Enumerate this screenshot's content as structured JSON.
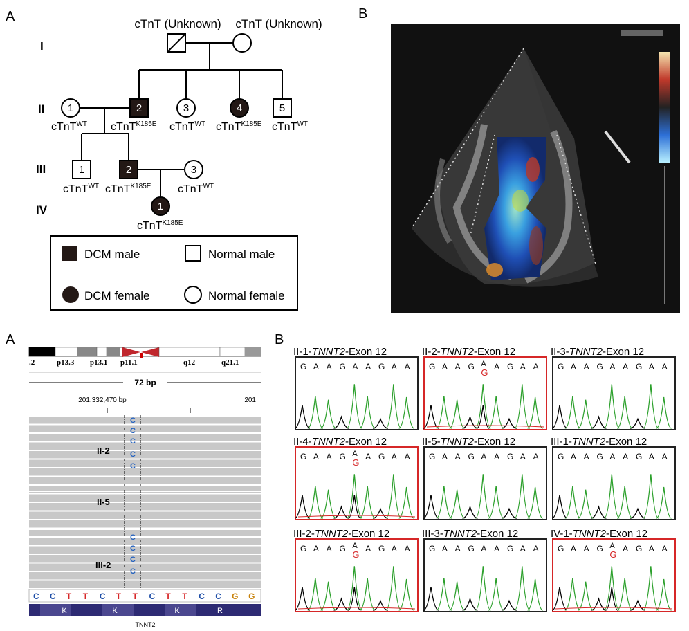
{
  "figure_top": {
    "panel_a_letter": "A",
    "panel_b_letter": "B",
    "generations": [
      "I",
      "II",
      "III",
      "IV"
    ],
    "gen1_labels": [
      "cTnT (Unknown)",
      "cTnT (Unknown)"
    ],
    "gen2": [
      {
        "num": "1",
        "label": "cTnT",
        "sup": "WT"
      },
      {
        "num": "2",
        "label": "cTnT",
        "sup": "K185E"
      },
      {
        "num": "3",
        "label": "cTnT",
        "sup": "WT"
      },
      {
        "num": "4",
        "label": "cTnT",
        "sup": "K185E"
      },
      {
        "num": "5",
        "label": "cTnT",
        "sup": "WT"
      }
    ],
    "gen3": [
      {
        "num": "1",
        "label": "cTnT",
        "sup": "WT"
      },
      {
        "num": "2",
        "label": "cTnT",
        "sup": "K185E"
      },
      {
        "num": "3",
        "label": "cTnT",
        "sup": "WT"
      }
    ],
    "gen4": [
      {
        "num": "1",
        "label": "cTnT",
        "sup": "K185E"
      }
    ],
    "legend": [
      "DCM male",
      "Normal male",
      "DCM female",
      "Normal female"
    ]
  },
  "igv": {
    "panel_letter": "A",
    "bands": [
      ".2",
      "p13.3",
      "p13.1",
      "p11.1",
      "q12",
      "q21.1"
    ],
    "span": "72 bp",
    "coord": "201,332,470 bp",
    "coord_right": "201",
    "groups": [
      "II-2",
      "II-5",
      "III-2"
    ],
    "variant_base": "C",
    "sequence": [
      "C",
      "C",
      "T",
      "T",
      "C",
      "T",
      "T",
      "C",
      "T",
      "T",
      "C",
      "C",
      "G",
      "G"
    ],
    "amino_acids": [
      "K",
      "K",
      "K",
      "R"
    ],
    "gene": "TNNT2"
  },
  "chromatograms": {
    "panel_letter": "B",
    "gene": "TNNT2",
    "exon_suffix": "-Exon 12",
    "panels": [
      {
        "sample": "II-1-",
        "mutant": false
      },
      {
        "sample": "II-2-",
        "mutant": true
      },
      {
        "sample": "II-3-",
        "mutant": false
      },
      {
        "sample": "II-4-",
        "mutant": true
      },
      {
        "sample": "II-5-",
        "mutant": false
      },
      {
        "sample": "III-1-",
        "mutant": false
      },
      {
        "sample": "III-2-",
        "mutant": true
      },
      {
        "sample": "III-3-",
        "mutant": false
      },
      {
        "sample": "IV-1-",
        "mutant": true
      }
    ],
    "bases_wt": [
      "G",
      "A",
      "A",
      "G",
      "A",
      "A",
      "G",
      "A",
      "A"
    ],
    "het_top": "A",
    "het_bottom": "G",
    "colors": {
      "mutant_border": "#d62728",
      "normal_border": "#222222",
      "green": "#2ca02c",
      "het_red": "#d62728"
    }
  }
}
